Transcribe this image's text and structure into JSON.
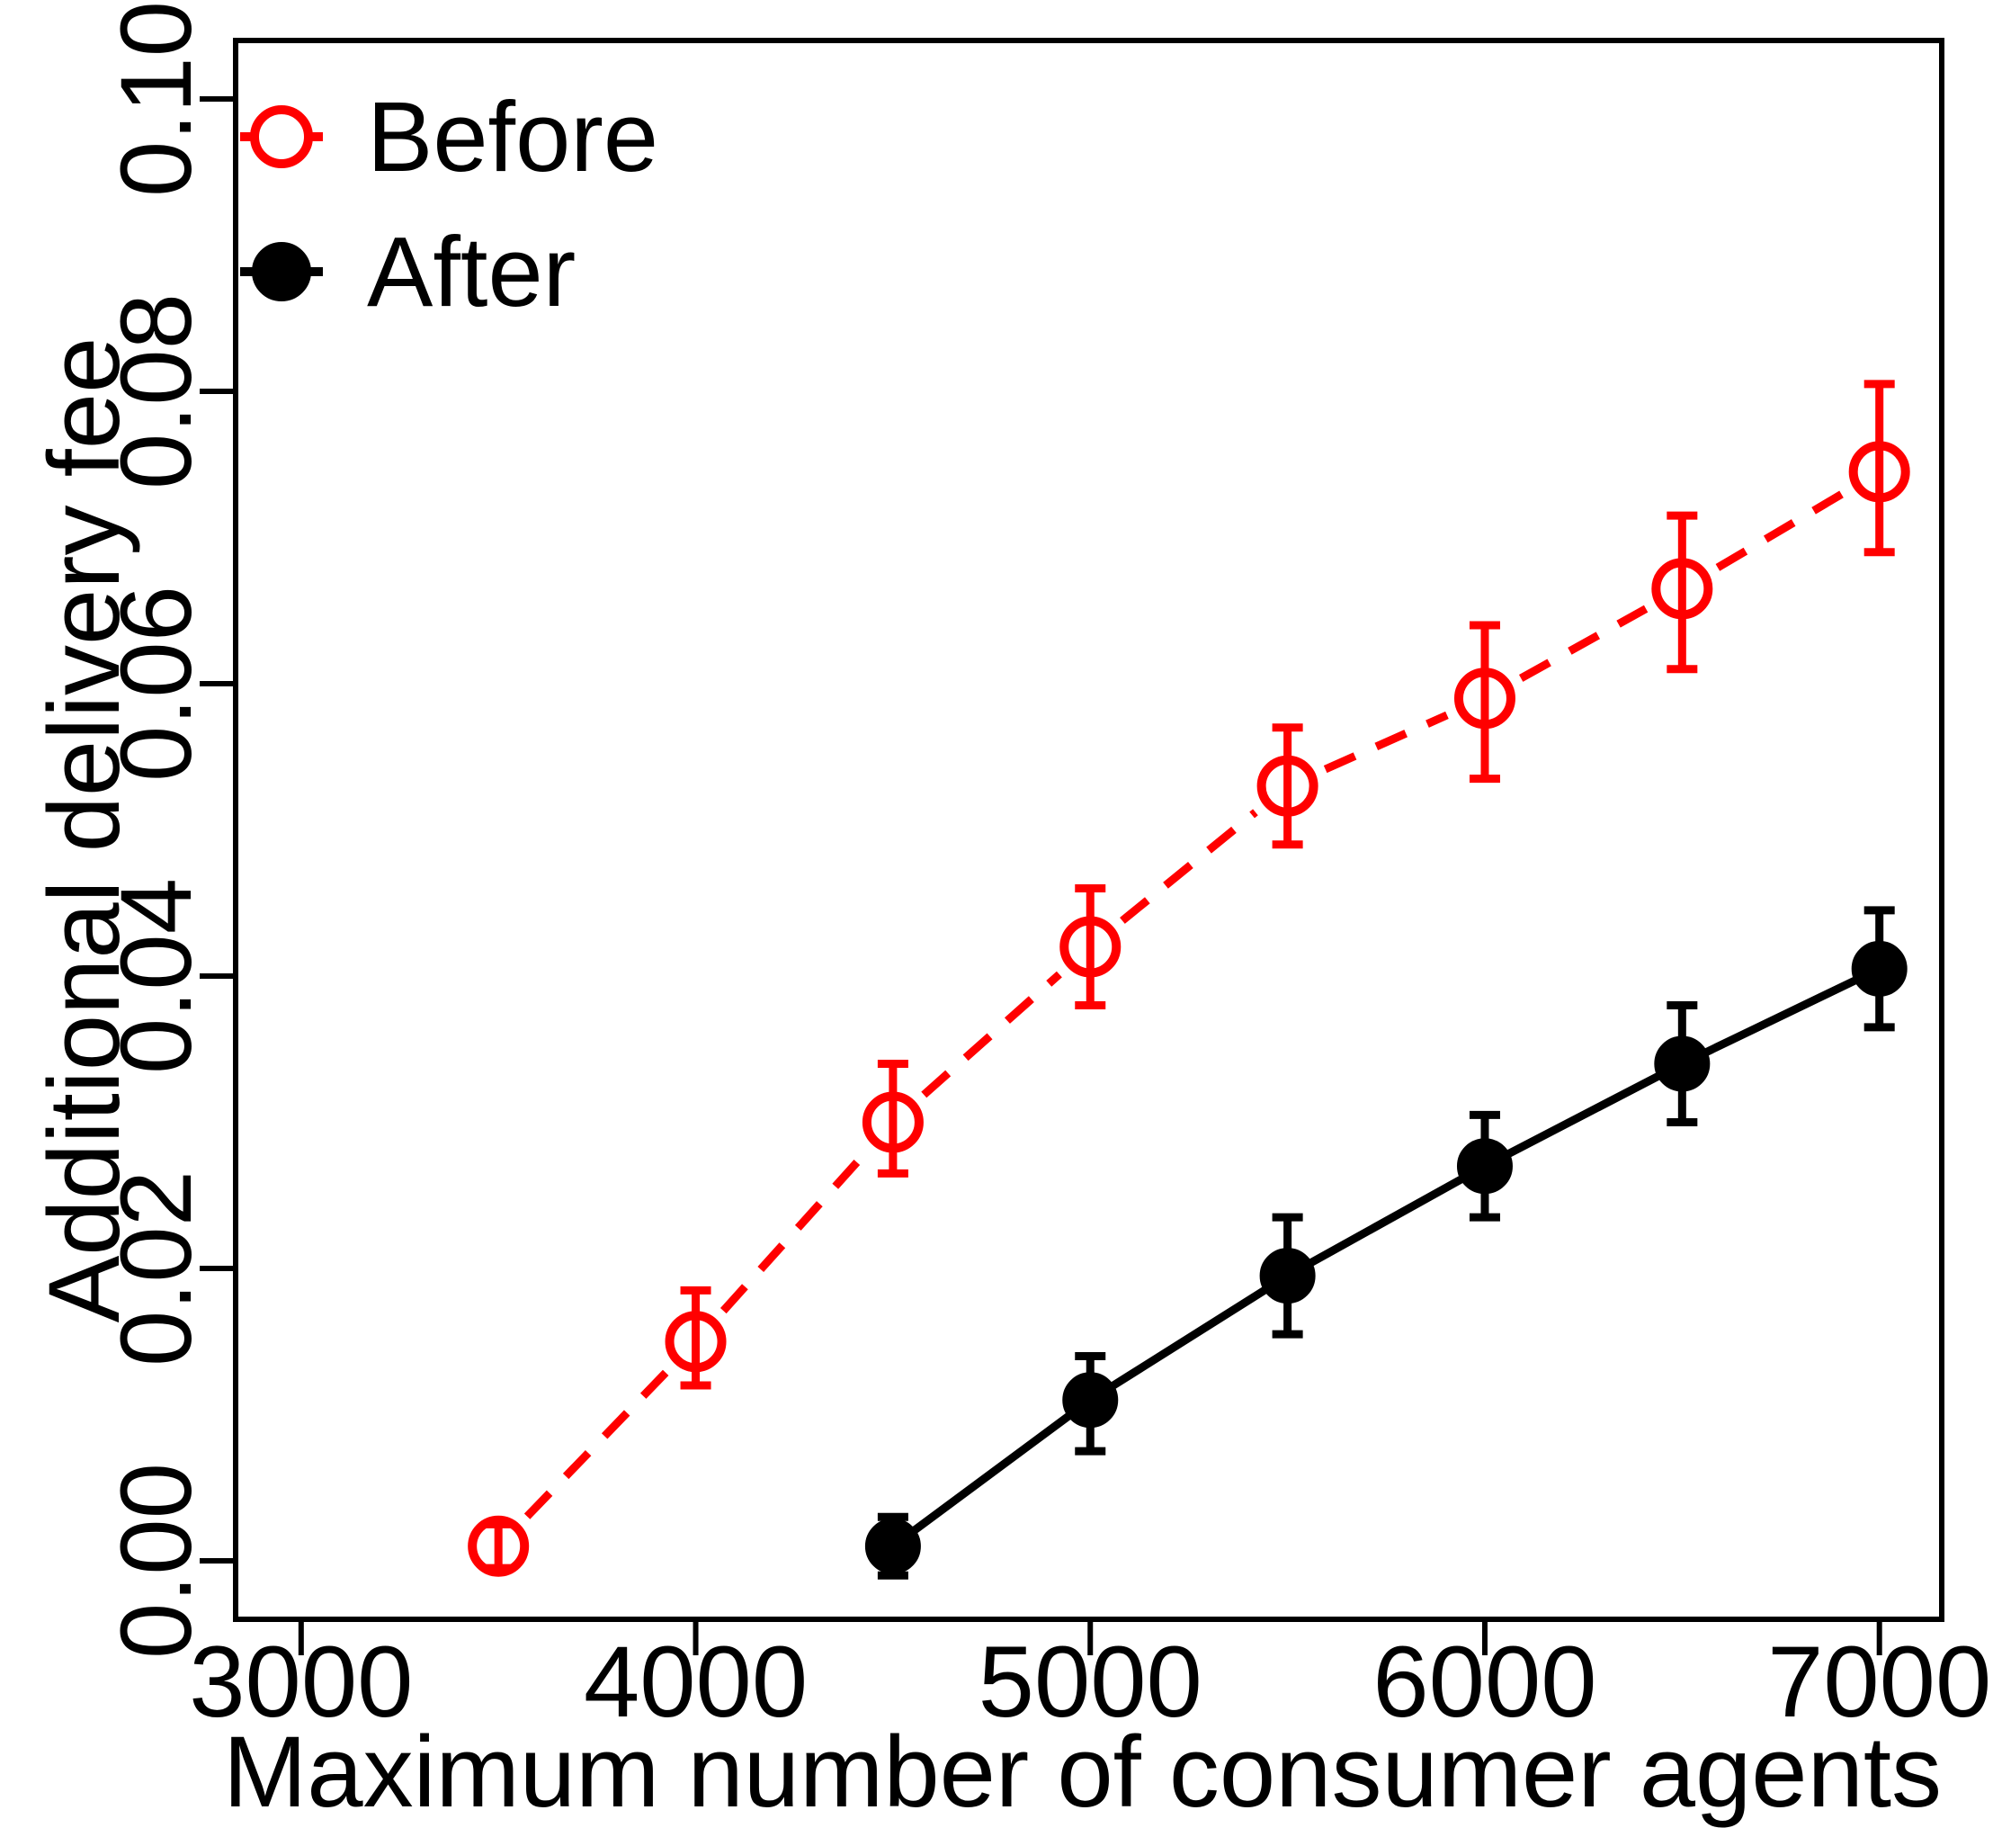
{
  "figure": {
    "background": "#FFFFFF",
    "axis_color": "#000000"
  },
  "chart_data": {
    "type": "line",
    "title": "",
    "xlabel": "Maximum number of consumer agents",
    "ylabel": "Additional delivery fee",
    "xlim": [
      2834,
      7158
    ],
    "ylim": [
      -0.004,
      0.104
    ],
    "grid": false,
    "legend_position": "top-left",
    "x_ticks": [
      3000,
      4000,
      5000,
      6000,
      7000
    ],
    "x_tick_labels": [
      "3000",
      "4000",
      "5000",
      "6000",
      "7000"
    ],
    "y_ticks": [
      0.0,
      0.02,
      0.04,
      0.06,
      0.08,
      0.1
    ],
    "y_tick_labels": [
      "0.00",
      "0.02",
      "0.04",
      "0.06",
      "0.08",
      "0.10"
    ],
    "series": [
      {
        "name": "Before",
        "color": "#FF0000",
        "line_style": "dashed",
        "marker": "open-circle",
        "x": [
          3500,
          4000,
          4500,
          5000,
          5500,
          6000,
          6500,
          7000
        ],
        "y": [
          0.001,
          0.015,
          0.03,
          0.042,
          0.053,
          0.059,
          0.0665,
          0.0745
        ],
        "y_err_low": [
          -0.0005,
          0.012,
          0.0265,
          0.038,
          0.049,
          0.0535,
          0.061,
          0.069
        ],
        "y_err_high": [
          0.0025,
          0.0185,
          0.034,
          0.046,
          0.057,
          0.064,
          0.0715,
          0.0805
        ]
      },
      {
        "name": "After",
        "color": "#000000",
        "line_style": "solid",
        "marker": "filled-circle",
        "x": [
          4500,
          5000,
          5500,
          6000,
          6500,
          7000
        ],
        "y": [
          0.001,
          0.011,
          0.0195,
          0.027,
          0.034,
          0.0405
        ],
        "y_err_low": [
          -0.001,
          0.0075,
          0.0155,
          0.0235,
          0.03,
          0.0365
        ],
        "y_err_high": [
          0.003,
          0.014,
          0.0235,
          0.0305,
          0.038,
          0.0445
        ]
      }
    ],
    "legend": {
      "items": [
        {
          "label": "Before"
        },
        {
          "label": "After"
        }
      ]
    }
  }
}
